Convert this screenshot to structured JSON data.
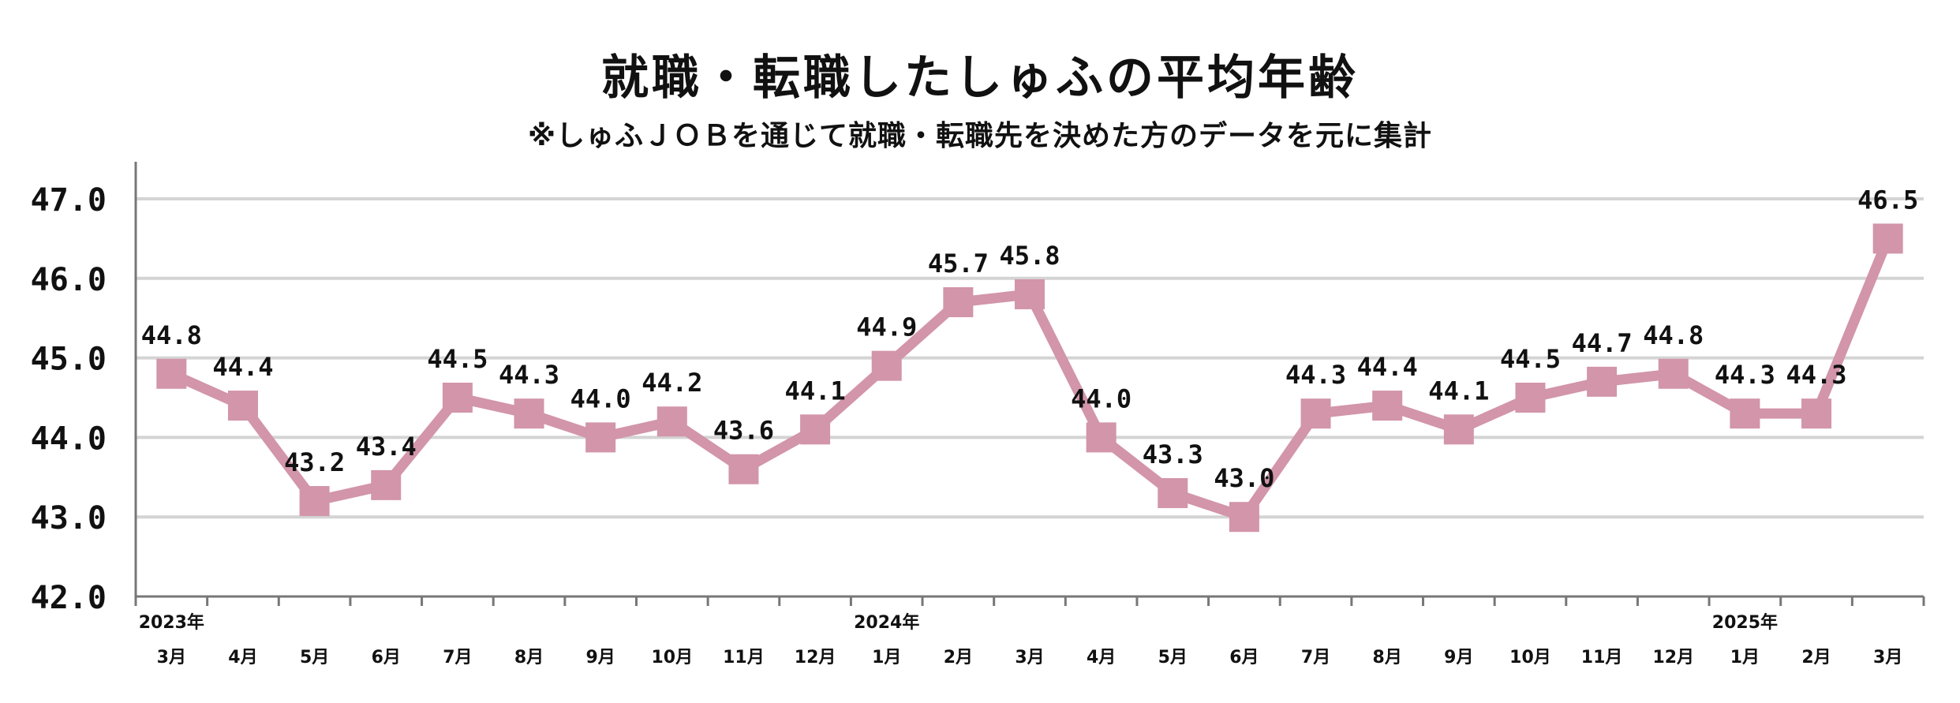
{
  "title": "就職・転職したしゅふの平均年齢",
  "subtitle": "※しゅふＪＯＢを通じて就職・転職先を決めた方のデータを元に集計",
  "chart_data": {
    "type": "line",
    "title": "就職・転職したしゅふの平均年齢",
    "subtitle": "※しゅふＪＯＢを通じて就職・転職先を決めた方のデータを元に集計",
    "xlabel": "",
    "ylabel": "",
    "ylim": [
      42.0,
      47.0
    ],
    "yticks": [
      "42.0",
      "43.0",
      "44.0",
      "45.0",
      "46.0",
      "47.0"
    ],
    "grid": true,
    "line_color": "#d295aa",
    "categories": [
      "3月",
      "4月",
      "5月",
      "6月",
      "7月",
      "8月",
      "9月",
      "10月",
      "11月",
      "12月",
      "1月",
      "2月",
      "3月",
      "4月",
      "5月",
      "6月",
      "7月",
      "8月",
      "9月",
      "10月",
      "11月",
      "12月",
      "1月",
      "2月",
      "3月"
    ],
    "year_labels": [
      {
        "index": 0,
        "label": "2023年"
      },
      {
        "index": 10,
        "label": "2024年"
      },
      {
        "index": 22,
        "label": "2025年"
      }
    ],
    "series": [
      {
        "values": [
          44.8,
          44.4,
          43.2,
          43.4,
          44.5,
          44.3,
          44.0,
          44.2,
          43.6,
          44.1,
          44.9,
          45.7,
          45.8,
          44.0,
          43.3,
          43.0,
          44.3,
          44.4,
          44.1,
          44.5,
          44.7,
          44.8,
          44.3,
          44.3,
          46.5
        ],
        "labels": [
          "44.8",
          "44.4",
          "43.2",
          "43.4",
          "44.5",
          "44.3",
          "44.0",
          "44.2",
          "43.6",
          "44.1",
          "44.9",
          "45.7",
          "45.8",
          "44.0",
          "43.3",
          "43.0",
          "44.3",
          "44.4",
          "44.1",
          "44.5",
          "44.7",
          "44.8",
          "44.3",
          "44.3",
          "46.5"
        ]
      }
    ]
  }
}
